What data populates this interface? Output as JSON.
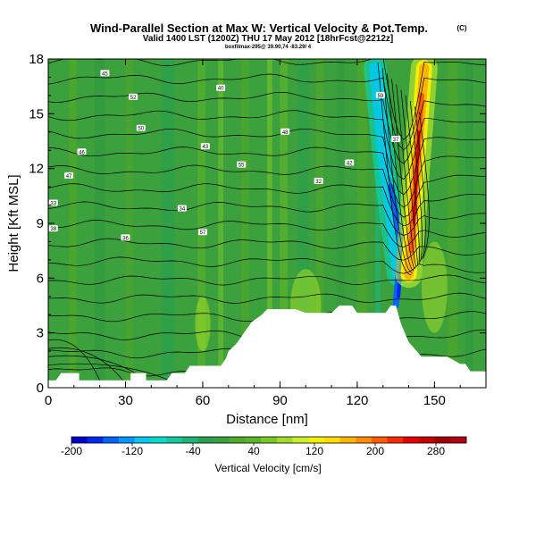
{
  "chart_data": {
    "type": "heatmap",
    "title": "Wind-Parallel Section at Max W: Vertical Velocity & Pot.Temp.",
    "title_mark": "(C)",
    "subtitle": "Valid 1400 LST (1200Z) THU 17 May 2012 [18hrFcst@2212z]",
    "caption": "boxfilmax-295@ 39.90,74 -83.29/ 4",
    "xlabel": "Distance [nm]",
    "ylabel": "Height [Kft MSL]",
    "xlim": [
      0,
      170
    ],
    "ylim": [
      0,
      18
    ],
    "xticks": [
      0,
      30,
      60,
      90,
      120,
      150
    ],
    "yticks": [
      0,
      3,
      6,
      9,
      12,
      15,
      18
    ],
    "colorbar": {
      "label": "Vertical Velocity [cm/s]",
      "range": [
        -200,
        320
      ],
      "tick_values": [
        -200,
        -120,
        -40,
        40,
        120,
        200,
        280
      ],
      "colors": [
        "#0000c8",
        "#0028f0",
        "#0064ff",
        "#0096ff",
        "#00c8f0",
        "#00dcc8",
        "#14c8a0",
        "#1eb478",
        "#28a050",
        "#3ca03c",
        "#50aa28",
        "#5ab428",
        "#78c828",
        "#a0dc28",
        "#c8f028",
        "#f0f000",
        "#ffdc00",
        "#ffb400",
        "#ff8c00",
        "#ff5a00",
        "#ff2800",
        "#e60000",
        "#c80000",
        "#a00000",
        "#b40014"
      ]
    },
    "terrain": [
      [
        0,
        0.4
      ],
      [
        3,
        0.4
      ],
      [
        5,
        0.8
      ],
      [
        12,
        0.8
      ],
      [
        12,
        0.4
      ],
      [
        32,
        0.4
      ],
      [
        32,
        0.8
      ],
      [
        38,
        0.8
      ],
      [
        38,
        0.4
      ],
      [
        46,
        0.4
      ],
      [
        48,
        0.8
      ],
      [
        53,
        0.8
      ],
      [
        55,
        1.2
      ],
      [
        67,
        1.2
      ],
      [
        69,
        1.6
      ],
      [
        70,
        2.0
      ],
      [
        73,
        2.4
      ],
      [
        75,
        2.8
      ],
      [
        77,
        3.2
      ],
      [
        79,
        3.6
      ],
      [
        83,
        4.0
      ],
      [
        85,
        4.3
      ],
      [
        96,
        4.3
      ],
      [
        100,
        4.1
      ],
      [
        110,
        4.1
      ],
      [
        113,
        4.5
      ],
      [
        118,
        4.5
      ],
      [
        120,
        4.1
      ],
      [
        131,
        4.1
      ],
      [
        133,
        4.5
      ],
      [
        135,
        4.5
      ],
      [
        137,
        3.5
      ],
      [
        140,
        2.5
      ],
      [
        145,
        1.7
      ],
      [
        155,
        1.7
      ],
      [
        160,
        1.3
      ],
      [
        162,
        1.3
      ],
      [
        164,
        0.9
      ],
      [
        170,
        0.9
      ]
    ],
    "updraft_axis": [
      [
        140,
        6.2
      ],
      [
        143,
        12.0
      ],
      [
        146,
        17.5
      ]
    ],
    "downdraft_axis": [
      [
        136,
        6.2
      ],
      [
        131,
        12.0
      ],
      [
        127,
        17.5
      ]
    ],
    "contour_labels": [
      "45",
      "52",
      "50",
      "40",
      "48",
      "43",
      "46",
      "47",
      "55",
      "32",
      "42",
      "59",
      "37",
      "33",
      "38",
      "36",
      "34",
      "57"
    ]
  }
}
